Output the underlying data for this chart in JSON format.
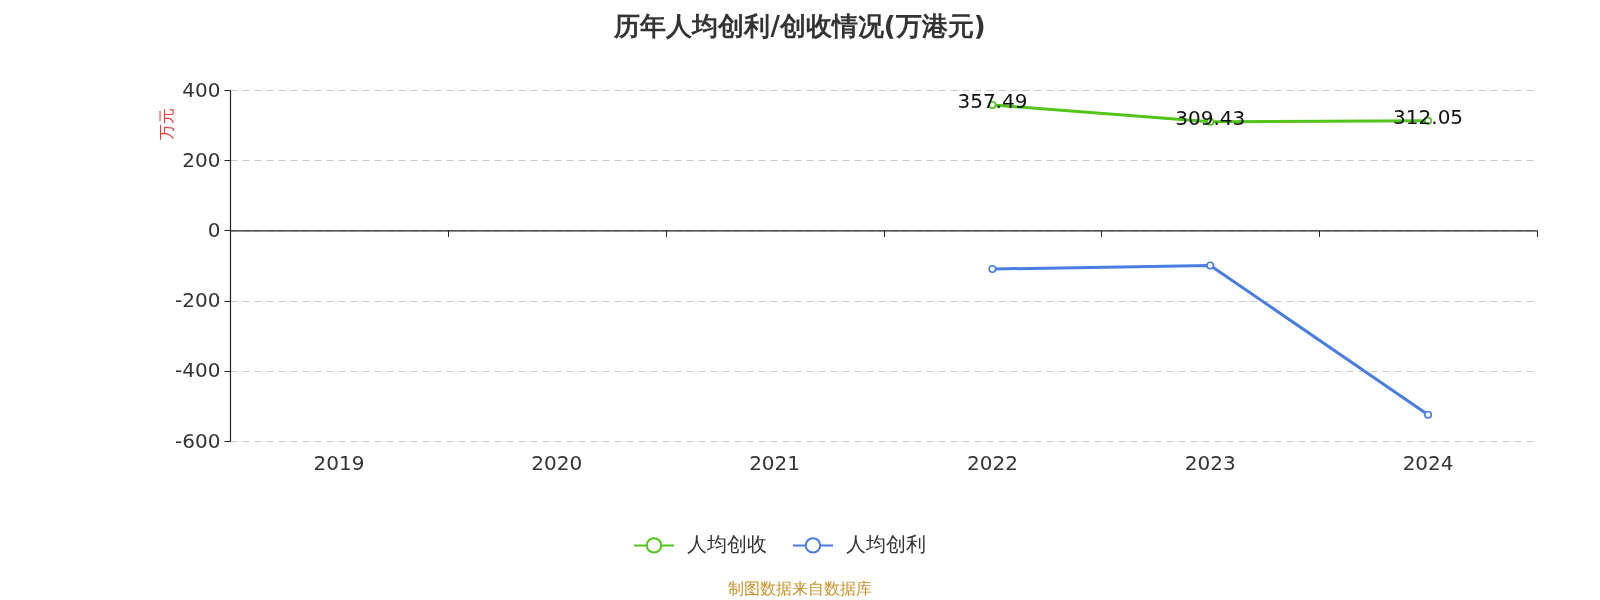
{
  "chart_data": {
    "type": "line",
    "title": "历年人均创利/创收情况(万港元)",
    "ylabel": "万元",
    "annotations": [
      "制图数据来自数据库"
    ],
    "categories": [
      "2019",
      "2020",
      "2021",
      "2022",
      "2023",
      "2024"
    ],
    "series": [
      {
        "name": "人均创收",
        "color": "#52c41a",
        "values": [
          null,
          null,
          null,
          357.49,
          309.43,
          312.05
        ],
        "value_labels": [
          null,
          null,
          null,
          "357.49",
          "309.43",
          "312.05"
        ]
      },
      {
        "name": "人均创利",
        "color": "#4a7de0",
        "values": [
          null,
          null,
          null,
          -110,
          -100,
          -525
        ]
      }
    ],
    "ylim": [
      -600,
      400
    ],
    "yticks": [
      -600,
      -400,
      -200,
      0,
      200,
      400
    ],
    "grid": "y",
    "legend": "bottom",
    "marker": "circle",
    "line_style": "solid"
  }
}
